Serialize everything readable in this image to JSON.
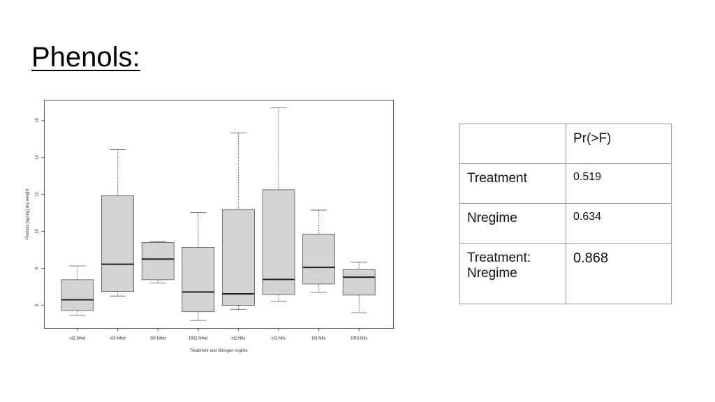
{
  "slide": {
    "title": "Phenols:"
  },
  "chart_data": {
    "type": "box",
    "ylabel": "Phenols [ug/mg] dry weight",
    "xlabel": "Treatment and Nitrogen regime",
    "ylim": [
      4.75,
      17.1
    ],
    "yticks": [
      6,
      8,
      10,
      12,
      14,
      16
    ],
    "grid": false,
    "categories": [
      "ct2.Nfed",
      "ct3.Nfed",
      "D9.Nfed",
      "DR3.Nfed",
      "ct2.Nfix",
      "ct3.Nfix",
      "D9.Nfix",
      "DR3.Nfix"
    ],
    "boxes": [
      {
        "whisker_low": 5.45,
        "q1": 5.72,
        "median": 6.3,
        "q3": 7.38,
        "whisker_high": 8.13
      },
      {
        "whisker_low": 6.5,
        "q1": 6.75,
        "median": 8.22,
        "q3": 11.93,
        "whisker_high": 14.42
      },
      {
        "whisker_low": 7.2,
        "q1": 7.38,
        "median": 8.5,
        "q3": 9.4,
        "whisker_high": 9.45
      },
      {
        "whisker_low": 5.18,
        "q1": 5.65,
        "median": 6.72,
        "q3": 9.13,
        "whisker_high": 11.02
      },
      {
        "whisker_low": 5.78,
        "q1": 6.0,
        "median": 6.62,
        "q3": 11.18,
        "whisker_high": 15.32
      },
      {
        "whisker_low": 6.2,
        "q1": 6.58,
        "median": 7.4,
        "q3": 12.25,
        "whisker_high": 16.68
      },
      {
        "whisker_low": 6.7,
        "q1": 7.15,
        "median": 8.05,
        "q3": 9.85,
        "whisker_high": 11.15
      },
      {
        "whisker_low": 5.6,
        "q1": 6.55,
        "median": 7.52,
        "q3": 7.93,
        "whisker_high": 8.33
      }
    ]
  },
  "table": {
    "header": {
      "blank": "",
      "col": "Pr(>F)"
    },
    "rows": [
      {
        "label": "Treatment",
        "value": "0.519"
      },
      {
        "label": "Nregime",
        "value": "0.634"
      },
      {
        "label_line1": "Treatment:",
        "label_line2": "Nregime",
        "value": "0.868"
      }
    ]
  }
}
